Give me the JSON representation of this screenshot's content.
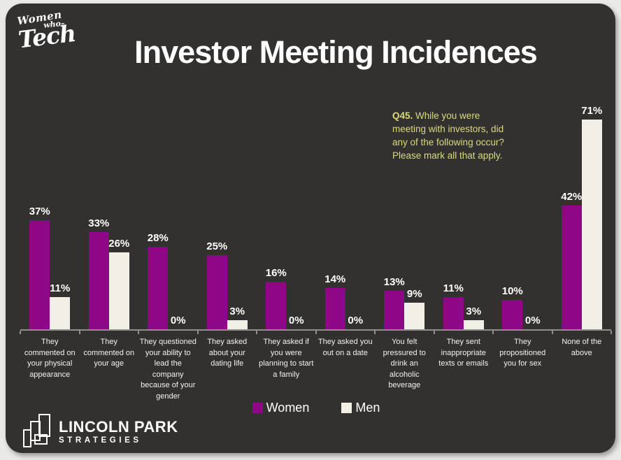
{
  "brand": {
    "top_logo": {
      "line1": "Women",
      "line2": "who–",
      "line3": "Tech"
    },
    "footer_logo": {
      "line1": "LINCOLN PARK",
      "line2": "STRATEGIES"
    }
  },
  "header": {
    "title": "Investor Meeting Incidences"
  },
  "question": {
    "prefix": "Q45.",
    "text": " While you were meeting with investors, did any of the following occur? Please mark all that apply."
  },
  "legend": [
    {
      "label": "Women",
      "color": "#8d0786"
    },
    {
      "label": "Men",
      "color": "#f1efe6"
    }
  ],
  "colors": {
    "panel_bg": "#333130",
    "outer_bg": "#e9e9e7",
    "women_bar": "#8d0786",
    "men_bar": "#f1efe6",
    "question_text": "#d8da7d",
    "axis": "#8f8f8f",
    "title_text": "#ffffff"
  },
  "chart_data": {
    "type": "bar",
    "title": "Investor Meeting Incidences",
    "xlabel": "",
    "ylabel": "",
    "value_suffix": "%",
    "ylim": [
      0,
      75
    ],
    "grid": false,
    "legend_position": "bottom",
    "categories": [
      "They commented on your physical appearance",
      "They commented on your age",
      "They questioned your ability to lead the company because of your gender",
      "They asked about your dating life",
      "They asked if you were planning to start a family",
      "They asked you out on a date",
      "You felt pressured to drink an alcoholic beverage",
      "They sent inappropriate texts or emails",
      "They propositioned you for sex",
      "None of the above"
    ],
    "series": [
      {
        "name": "Women",
        "color": "#8d0786",
        "values": [
          37,
          33,
          28,
          25,
          16,
          14,
          13,
          11,
          10,
          42
        ]
      },
      {
        "name": "Men",
        "color": "#f1efe6",
        "values": [
          11,
          26,
          0,
          3,
          0,
          0,
          9,
          3,
          0,
          71
        ]
      }
    ]
  }
}
